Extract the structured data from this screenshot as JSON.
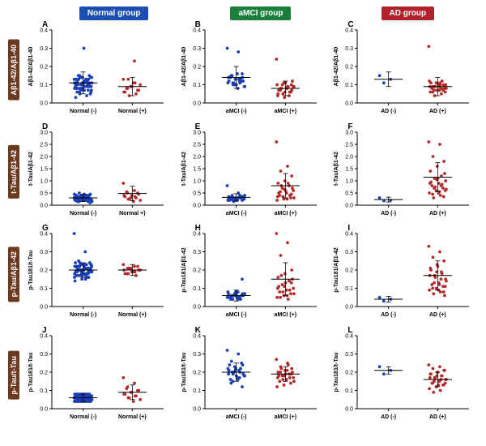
{
  "groups": [
    {
      "label": "Normal group",
      "bg": "#1b4fb3"
    },
    {
      "label": "aMCI group",
      "bg": "#1b7f3c"
    },
    {
      "label": "AD group",
      "bg": "#b3222c"
    }
  ],
  "row_labels": [
    {
      "text": "Aβ1-42/Aβ1-40",
      "bg": "#6b3a1f"
    },
    {
      "text": "t-Tau/Aβ1-42",
      "bg": "#6b3a1f"
    },
    {
      "text": "p-Tau/Aβ1-42",
      "bg": "#6b3a1f"
    },
    {
      "text": "p-Tau/t-Tau",
      "bg": "#6b3a1f"
    }
  ],
  "colors": {
    "neg": "#1b3fb3",
    "pos": "#b32a2a",
    "bar": "#000000"
  },
  "panel": {
    "w": 178,
    "h": 122,
    "ml": 34,
    "mr": 6,
    "mt": 12,
    "mb": 20,
    "marker_r": 1.9
  },
  "panels": [
    {
      "letter": "A",
      "ylabel": "Aβ1-42/Aβ1-40",
      "cats": [
        "Normal (-)",
        "Normal (+)"
      ],
      "ylim": [
        0,
        0.4
      ],
      "yticks": [
        0,
        0.1,
        0.2,
        0.3,
        0.4
      ],
      "series": [
        {
          "color": "neg",
          "mean": 0.11,
          "err": 0.06,
          "pts": [
            0.13,
            0.09,
            0.15,
            0.11,
            0.08,
            0.1,
            0.12,
            0.14,
            0.09,
            0.07,
            0.11,
            0.13,
            0.1,
            0.08,
            0.12,
            0.15,
            0.09,
            0.11,
            0.13,
            0.1,
            0.07,
            0.14,
            0.12,
            0.08,
            0.1,
            0.11,
            0.09,
            0.13,
            0.15,
            0.14,
            0.3,
            0.06,
            0.07,
            0.08,
            0.11,
            0.12,
            0.13,
            0.09,
            0.1,
            0.11,
            0.12,
            0.08,
            0.07,
            0.09,
            0.1,
            0.11,
            0.14,
            0.13,
            0.12,
            0.06,
            0.05,
            0.07,
            0.08,
            0.09,
            0.1,
            0.11,
            0.12,
            0.13,
            0.15,
            0.14,
            0.03,
            0.04,
            0.05,
            0.06,
            0.11,
            0.12,
            0.09,
            0.1,
            0.08,
            0.13
          ]
        },
        {
          "color": "pos",
          "mean": 0.09,
          "err": 0.05,
          "pts": [
            0.13,
            0.23,
            0.08,
            0.07,
            0.09,
            0.06,
            0.05,
            0.04,
            0.1,
            0.11,
            0.08,
            0.07,
            0.09,
            0.06,
            0.11,
            0.13
          ]
        }
      ]
    },
    {
      "letter": "B",
      "ylabel": "Aβ1-42/Aβ1-40",
      "cats": [
        "aMCI (-)",
        "aMCI (+)"
      ],
      "ylim": [
        0,
        0.4
      ],
      "yticks": [
        0,
        0.1,
        0.2,
        0.3,
        0.4
      ],
      "series": [
        {
          "color": "neg",
          "mean": 0.14,
          "err": 0.06,
          "pts": [
            0.3,
            0.28,
            0.15,
            0.14,
            0.13,
            0.12,
            0.11,
            0.1,
            0.09,
            0.16,
            0.14,
            0.12,
            0.1,
            0.11,
            0.13,
            0.15,
            0.12,
            0.1,
            0.14,
            0.13,
            0.11,
            0.09,
            0.08,
            0.15,
            0.16,
            0.13,
            0.14,
            0.12,
            0.11
          ]
        },
        {
          "color": "pos",
          "mean": 0.08,
          "err": 0.04,
          "pts": [
            0.24,
            0.09,
            0.08,
            0.07,
            0.06,
            0.05,
            0.04,
            0.1,
            0.09,
            0.08,
            0.07,
            0.06,
            0.11,
            0.1,
            0.09,
            0.08,
            0.12,
            0.11,
            0.07,
            0.06,
            0.05,
            0.09,
            0.08,
            0.07,
            0.1,
            0.03,
            0.04
          ]
        }
      ]
    },
    {
      "letter": "C",
      "ylabel": "Aβ1-42/Aβ1-40",
      "cats": [
        "AD (-)",
        "AD (+)"
      ],
      "ylim": [
        0,
        0.4
      ],
      "yticks": [
        0,
        0.1,
        0.2,
        0.3,
        0.4
      ],
      "series": [
        {
          "color": "neg",
          "mean": 0.13,
          "err": 0.04,
          "pts": [
            0.15,
            0.13,
            0.11
          ]
        },
        {
          "color": "pos",
          "mean": 0.09,
          "err": 0.05,
          "pts": [
            0.31,
            0.11,
            0.09,
            0.08,
            0.07,
            0.06,
            0.05,
            0.04,
            0.1,
            0.09,
            0.08,
            0.07,
            0.11,
            0.12,
            0.1,
            0.09,
            0.08,
            0.07,
            0.11,
            0.12,
            0.09,
            0.08,
            0.07,
            0.06,
            0.1,
            0.11,
            0.09,
            0.08,
            0.07,
            0.06,
            0.1
          ]
        }
      ]
    },
    {
      "letter": "D",
      "ylabel": "t-Tau/Aβ1-42",
      "cats": [
        "Normal (-)",
        "Normal +)"
      ],
      "ylim": [
        0,
        3
      ],
      "yticks": [
        0,
        0.5,
        1.0,
        1.5,
        2.0,
        2.5,
        3.0
      ],
      "series": [
        {
          "color": "neg",
          "mean": 0.3,
          "err": 0.15,
          "pts": [
            0.3,
            0.25,
            0.2,
            0.15,
            0.35,
            0.4,
            0.3,
            0.25,
            0.2,
            0.45,
            0.3,
            0.35,
            0.2,
            0.25,
            0.3,
            0.15,
            0.1,
            0.35,
            0.4,
            0.3,
            0.25,
            0.2,
            0.3,
            0.35,
            0.25,
            0.2,
            0.3,
            0.4,
            0.35,
            0.25,
            0.2,
            0.3,
            0.15,
            0.4,
            0.45,
            0.3,
            0.25,
            0.2,
            0.35,
            0.3,
            0.25,
            0.2,
            0.15,
            0.4,
            0.35,
            0.3,
            0.25,
            0.2,
            0.3,
            0.5,
            0.45,
            0.2,
            0.25,
            0.3,
            0.35,
            0.15,
            0.2,
            0.3,
            0.4,
            0.25,
            0.3,
            0.35,
            0.2,
            0.25,
            0.3,
            0.15,
            0.4,
            0.3,
            0.25,
            0.2
          ]
        },
        {
          "color": "pos",
          "mean": 0.48,
          "err": 0.3,
          "pts": [
            0.9,
            0.6,
            0.5,
            0.45,
            0.4,
            0.35,
            0.3,
            0.25,
            0.2,
            0.15,
            0.55,
            0.5,
            0.3,
            0.4,
            0.35,
            0.25
          ]
        }
      ]
    },
    {
      "letter": "E",
      "ylabel": "t-Tau/Aβ1-42",
      "cats": [
        "aMCI (-)",
        "aMCI (+)"
      ],
      "ylim": [
        0,
        3
      ],
      "yticks": [
        0,
        0.5,
        1.0,
        1.5,
        2.0,
        2.5,
        3.0
      ],
      "series": [
        {
          "color": "neg",
          "mean": 0.32,
          "err": 0.15,
          "pts": [
            0.8,
            0.5,
            0.3,
            0.25,
            0.2,
            0.35,
            0.4,
            0.3,
            0.25,
            0.2,
            0.3,
            0.35,
            0.25,
            0.2,
            0.3,
            0.4,
            0.35,
            0.25,
            0.2,
            0.3,
            0.15,
            0.4,
            0.3,
            0.25,
            0.2,
            0.3,
            0.25,
            0.35,
            0.2
          ]
        },
        {
          "color": "pos",
          "mean": 0.8,
          "err": 0.5,
          "pts": [
            2.6,
            1.6,
            1.4,
            1.2,
            1.0,
            0.9,
            0.8,
            0.7,
            0.6,
            0.5,
            0.4,
            0.3,
            0.25,
            0.2,
            0.9,
            0.8,
            0.7,
            0.6,
            0.5,
            0.4,
            0.35,
            0.3,
            0.25,
            0.55,
            0.45,
            0.65,
            0.35
          ]
        }
      ]
    },
    {
      "letter": "F",
      "ylabel": "t-Tau/Aβ1-42",
      "cats": [
        "AD (-)",
        "AD (+)"
      ],
      "ylim": [
        0,
        3
      ],
      "yticks": [
        0,
        0.5,
        1.0,
        1.5,
        2.0,
        2.5,
        3.0
      ],
      "series": [
        {
          "color": "neg",
          "mean": 0.23,
          "err": 0.1,
          "pts": [
            0.3,
            0.2,
            0.18
          ]
        },
        {
          "color": "pos",
          "mean": 1.15,
          "err": 0.6,
          "pts": [
            2.6,
            2.5,
            2.0,
            1.8,
            1.6,
            1.4,
            1.2,
            1.1,
            1.0,
            0.9,
            0.8,
            0.7,
            0.6,
            0.5,
            0.4,
            0.3,
            1.3,
            1.1,
            0.95,
            0.85,
            0.75,
            0.65,
            0.55,
            0.45,
            0.35,
            1.05,
            0.9,
            0.8,
            0.7,
            0.6,
            0.5
          ]
        }
      ]
    },
    {
      "letter": "G",
      "ylabel": "p-Tau181/t-Tau",
      "cats": [
        "Normal (-)",
        "Normal (+)"
      ],
      "ylim": [
        0,
        0.4
      ],
      "yticks": [
        0,
        0.1,
        0.2,
        0.3,
        0.4
      ],
      "series": [
        {
          "color": "neg",
          "mean": 0.2,
          "err": 0.04,
          "pts": [
            0.4,
            0.3,
            0.22,
            0.21,
            0.2,
            0.19,
            0.18,
            0.17,
            0.23,
            0.21,
            0.2,
            0.19,
            0.18,
            0.22,
            0.21,
            0.2,
            0.19,
            0.18,
            0.17,
            0.16,
            0.23,
            0.22,
            0.21,
            0.2,
            0.19,
            0.18,
            0.24,
            0.23,
            0.22,
            0.21,
            0.2,
            0.19,
            0.18,
            0.17,
            0.16,
            0.15,
            0.25,
            0.24,
            0.23,
            0.22,
            0.21,
            0.2,
            0.19,
            0.18,
            0.17,
            0.16,
            0.15,
            0.14,
            0.21,
            0.2,
            0.19,
            0.18,
            0.22,
            0.21,
            0.2,
            0.19,
            0.23,
            0.22,
            0.21,
            0.2,
            0.19,
            0.18,
            0.24,
            0.23,
            0.22,
            0.21,
            0.2,
            0.19,
            0.18,
            0.17
          ]
        },
        {
          "color": "pos",
          "mean": 0.2,
          "err": 0.03,
          "pts": [
            0.23,
            0.22,
            0.21,
            0.2,
            0.19,
            0.18,
            0.17,
            0.21,
            0.2,
            0.19,
            0.18,
            0.22,
            0.21,
            0.2,
            0.19,
            0.18
          ]
        }
      ]
    },
    {
      "letter": "H",
      "ylabel": "p-Tau181/Aβ1-42",
      "cats": [
        "aMCI (-)",
        "aMCI (+)"
      ],
      "ylim": [
        0,
        0.4
      ],
      "yticks": [
        0,
        0.1,
        0.2,
        0.3,
        0.4
      ],
      "series": [
        {
          "color": "neg",
          "mean": 0.06,
          "err": 0.03,
          "pts": [
            0.05,
            0.04,
            0.06,
            0.07,
            0.08,
            0.05,
            0.04,
            0.06,
            0.07,
            0.05,
            0.04,
            0.06,
            0.07,
            0.08,
            0.05,
            0.04,
            0.06,
            0.07,
            0.05,
            0.04,
            0.06,
            0.07,
            0.08,
            0.05,
            0.15,
            0.06,
            0.07,
            0.05,
            0.04
          ]
        },
        {
          "color": "pos",
          "mean": 0.15,
          "err": 0.09,
          "pts": [
            0.4,
            0.35,
            0.28,
            0.2,
            0.18,
            0.16,
            0.14,
            0.12,
            0.1,
            0.09,
            0.08,
            0.07,
            0.06,
            0.05,
            0.04,
            0.17,
            0.15,
            0.13,
            0.11,
            0.09,
            0.08,
            0.07,
            0.06,
            0.05,
            0.13,
            0.11,
            0.1
          ]
        }
      ]
    },
    {
      "letter": "I",
      "ylabel": "p-Tau181/Aβ1-42",
      "cats": [
        "AD (-)",
        "AD (+)"
      ],
      "ylim": [
        0,
        0.4
      ],
      "yticks": [
        0,
        0.1,
        0.2,
        0.3,
        0.4
      ],
      "series": [
        {
          "color": "neg",
          "mean": 0.04,
          "err": 0.015,
          "pts": [
            0.05,
            0.04,
            0.03
          ]
        },
        {
          "color": "pos",
          "mean": 0.17,
          "err": 0.08,
          "pts": [
            0.33,
            0.3,
            0.27,
            0.25,
            0.23,
            0.21,
            0.19,
            0.17,
            0.15,
            0.13,
            0.12,
            0.11,
            0.1,
            0.09,
            0.08,
            0.07,
            0.06,
            0.22,
            0.2,
            0.18,
            0.16,
            0.14,
            0.12,
            0.1,
            0.08,
            0.19,
            0.17,
            0.15,
            0.13,
            0.11,
            0.09
          ]
        }
      ]
    },
    {
      "letter": "J",
      "ylabel": "p-Tau181/t-Tau",
      "cats": [
        "Normal (-)",
        "Normal (+)"
      ],
      "ylim": [
        0,
        0.4
      ],
      "yticks": [
        0,
        0.1,
        0.2,
        0.3,
        0.4
      ],
      "series": [
        {
          "color": "neg",
          "mean": 0.06,
          "err": 0.02,
          "pts": [
            0.06,
            0.05,
            0.04,
            0.07,
            0.08,
            0.06,
            0.05,
            0.04,
            0.07,
            0.06,
            0.05,
            0.04,
            0.07,
            0.08,
            0.06,
            0.05,
            0.04,
            0.07,
            0.06,
            0.05,
            0.04,
            0.07,
            0.08,
            0.06,
            0.05,
            0.04,
            0.07,
            0.06,
            0.05,
            0.04,
            0.07,
            0.08,
            0.06,
            0.05,
            0.04,
            0.07,
            0.06,
            0.05,
            0.04,
            0.07,
            0.08,
            0.06,
            0.05,
            0.04,
            0.07,
            0.06,
            0.05,
            0.04,
            0.07,
            0.08,
            0.06,
            0.05,
            0.04,
            0.07,
            0.06,
            0.05,
            0.04,
            0.07,
            0.08,
            0.06,
            0.05,
            0.04,
            0.07,
            0.06,
            0.05,
            0.04,
            0.07,
            0.08,
            0.06,
            0.05
          ]
        },
        {
          "color": "pos",
          "mean": 0.09,
          "err": 0.04,
          "pts": [
            0.17,
            0.14,
            0.12,
            0.1,
            0.09,
            0.08,
            0.07,
            0.06,
            0.05,
            0.04,
            0.11,
            0.1,
            0.09,
            0.08,
            0.07,
            0.06
          ]
        }
      ]
    },
    {
      "letter": "K",
      "ylabel": "p-Tau181/t-Tau",
      "cats": [
        "aMCI (-)",
        "aMCI (+)"
      ],
      "ylim": [
        0,
        0.4
      ],
      "yticks": [
        0,
        0.1,
        0.2,
        0.3,
        0.4
      ],
      "series": [
        {
          "color": "neg",
          "mean": 0.2,
          "err": 0.05,
          "pts": [
            0.32,
            0.3,
            0.26,
            0.24,
            0.22,
            0.21,
            0.2,
            0.19,
            0.18,
            0.17,
            0.16,
            0.25,
            0.23,
            0.22,
            0.21,
            0.2,
            0.19,
            0.18,
            0.24,
            0.22,
            0.2,
            0.18,
            0.16,
            0.14,
            0.12,
            0.21,
            0.19,
            0.17,
            0.15
          ]
        },
        {
          "color": "pos",
          "mean": 0.19,
          "err": 0.04,
          "pts": [
            0.27,
            0.25,
            0.23,
            0.22,
            0.21,
            0.2,
            0.19,
            0.18,
            0.17,
            0.16,
            0.15,
            0.14,
            0.13,
            0.12,
            0.24,
            0.22,
            0.2,
            0.19,
            0.18,
            0.17,
            0.16,
            0.15,
            0.21,
            0.2,
            0.19,
            0.18,
            0.17
          ]
        }
      ]
    },
    {
      "letter": "L",
      "ylabel": "p-Tau181/t-Tau",
      "cats": [
        "AD (-)",
        "AD (+)"
      ],
      "ylim": [
        0,
        0.4
      ],
      "yticks": [
        0,
        0.1,
        0.2,
        0.3,
        0.4
      ],
      "series": [
        {
          "color": "neg",
          "mean": 0.21,
          "err": 0.02,
          "pts": [
            0.23,
            0.21,
            0.19
          ]
        },
        {
          "color": "pos",
          "mean": 0.16,
          "err": 0.04,
          "pts": [
            0.24,
            0.23,
            0.22,
            0.21,
            0.2,
            0.19,
            0.18,
            0.17,
            0.16,
            0.15,
            0.14,
            0.13,
            0.12,
            0.11,
            0.1,
            0.09,
            0.21,
            0.2,
            0.19,
            0.18,
            0.17,
            0.16,
            0.15,
            0.14,
            0.13,
            0.18,
            0.17,
            0.16,
            0.15,
            0.14,
            0.13
          ]
        }
      ]
    }
  ]
}
